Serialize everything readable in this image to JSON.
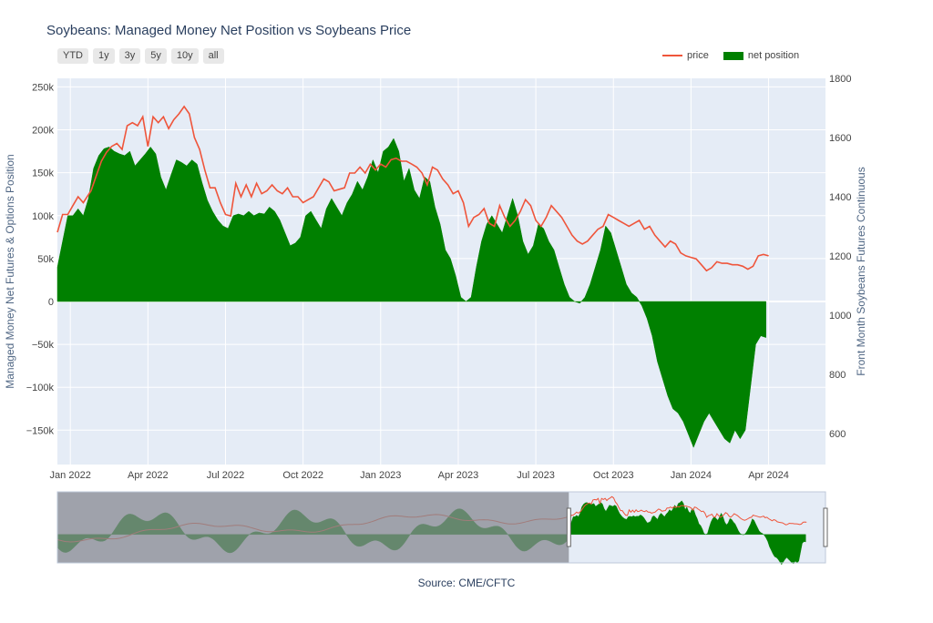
{
  "title": "Soybeans: Managed Money Net Position vs Soybeans Price",
  "range_buttons": [
    "YTD",
    "1y",
    "3y",
    "5y",
    "10y",
    "all"
  ],
  "source": "Source: CME/CFTC",
  "colors": {
    "price": "#ef553b",
    "net": "#008000",
    "plot_bg": "#e5ecf6",
    "grid": "#ffffff",
    "range_mask": "#878991"
  },
  "chart_data": {
    "type": "area",
    "legend": {
      "placement": "top-right",
      "entries": [
        "price",
        "net position"
      ]
    },
    "x_ticks": [
      {
        "label": "Jan 2022",
        "t": 0.0
      },
      {
        "label": "Apr 2022",
        "t": 3.0
      },
      {
        "label": "Jul 2022",
        "t": 6.0
      },
      {
        "label": "Oct 2022",
        "t": 9.0
      },
      {
        "label": "Jan 2023",
        "t": 12.0
      },
      {
        "label": "Apr 2023",
        "t": 15.0
      },
      {
        "label": "Jul 2023",
        "t": 18.0
      },
      {
        "label": "Oct 2023",
        "t": 21.0
      },
      {
        "label": "Jan 2024",
        "t": 24.0
      },
      {
        "label": "Apr 2024",
        "t": 27.0
      }
    ],
    "xlim": [
      -0.5,
      29.2
    ],
    "y_left": {
      "label": "Managed Money Net Futures & Options Position",
      "range": [
        -190000,
        260000
      ],
      "ticks": [
        {
          "v": 250000,
          "label": "250k"
        },
        {
          "v": 200000,
          "label": "200k"
        },
        {
          "v": 150000,
          "label": "150k"
        },
        {
          "v": 100000,
          "label": "100k"
        },
        {
          "v": 50000,
          "label": "50k"
        },
        {
          "v": 0,
          "label": "0"
        },
        {
          "v": -50000,
          "label": "−50k"
        },
        {
          "v": -100000,
          "label": "−100k"
        },
        {
          "v": -150000,
          "label": "−150k"
        }
      ]
    },
    "y_right": {
      "label": "Front Month Soybeans Futures Continuous",
      "range": [
        495,
        1800
      ],
      "ticks": [
        {
          "v": 1800,
          "label": "1800"
        },
        {
          "v": 1600,
          "label": "1600"
        },
        {
          "v": 1400,
          "label": "1400"
        },
        {
          "v": 1200,
          "label": "1200"
        },
        {
          "v": 1000,
          "label": "1000"
        },
        {
          "v": 800,
          "label": "800"
        },
        {
          "v": 600,
          "label": "600"
        }
      ]
    },
    "series": [
      {
        "name": "price",
        "axis": "right",
        "type": "line",
        "points": [
          [
            -0.5,
            1280
          ],
          [
            -0.3,
            1340
          ],
          [
            -0.1,
            1340
          ],
          [
            0.1,
            1370
          ],
          [
            0.3,
            1400
          ],
          [
            0.5,
            1380
          ],
          [
            0.8,
            1420
          ],
          [
            1.0,
            1470
          ],
          [
            1.2,
            1520
          ],
          [
            1.4,
            1550
          ],
          [
            1.6,
            1570
          ],
          [
            1.8,
            1580
          ],
          [
            2.0,
            1560
          ],
          [
            2.2,
            1640
          ],
          [
            2.4,
            1650
          ],
          [
            2.6,
            1640
          ],
          [
            2.8,
            1670
          ],
          [
            3.0,
            1570
          ],
          [
            3.2,
            1670
          ],
          [
            3.4,
            1650
          ],
          [
            3.6,
            1670
          ],
          [
            3.8,
            1630
          ],
          [
            4.0,
            1660
          ],
          [
            4.2,
            1680
          ],
          [
            4.4,
            1705
          ],
          [
            4.6,
            1680
          ],
          [
            4.8,
            1600
          ],
          [
            5.0,
            1560
          ],
          [
            5.2,
            1490
          ],
          [
            5.4,
            1430
          ],
          [
            5.6,
            1430
          ],
          [
            5.8,
            1380
          ],
          [
            6.0,
            1340
          ],
          [
            6.2,
            1335
          ],
          [
            6.4,
            1445
          ],
          [
            6.6,
            1400
          ],
          [
            6.8,
            1440
          ],
          [
            7.0,
            1400
          ],
          [
            7.2,
            1445
          ],
          [
            7.4,
            1410
          ],
          [
            7.6,
            1420
          ],
          [
            7.8,
            1440
          ],
          [
            8.0,
            1420
          ],
          [
            8.2,
            1410
          ],
          [
            8.4,
            1430
          ],
          [
            8.6,
            1400
          ],
          [
            8.8,
            1400
          ],
          [
            9.0,
            1380
          ],
          [
            9.2,
            1390
          ],
          [
            9.4,
            1400
          ],
          [
            9.6,
            1430
          ],
          [
            9.8,
            1460
          ],
          [
            10.0,
            1450
          ],
          [
            10.2,
            1420
          ],
          [
            10.4,
            1425
          ],
          [
            10.6,
            1430
          ],
          [
            10.8,
            1480
          ],
          [
            11.0,
            1480
          ],
          [
            11.2,
            1500
          ],
          [
            11.4,
            1480
          ],
          [
            11.6,
            1510
          ],
          [
            11.8,
            1490
          ],
          [
            12.0,
            1510
          ],
          [
            12.2,
            1500
          ],
          [
            12.4,
            1525
          ],
          [
            12.6,
            1530
          ],
          [
            12.8,
            1520
          ],
          [
            13.0,
            1520
          ],
          [
            13.2,
            1510
          ],
          [
            13.4,
            1500
          ],
          [
            13.6,
            1480
          ],
          [
            13.8,
            1440
          ],
          [
            14.0,
            1500
          ],
          [
            14.2,
            1490
          ],
          [
            14.4,
            1460
          ],
          [
            14.6,
            1440
          ],
          [
            14.8,
            1410
          ],
          [
            15.0,
            1420
          ],
          [
            15.2,
            1380
          ],
          [
            15.4,
            1300
          ],
          [
            15.6,
            1330
          ],
          [
            15.8,
            1340
          ],
          [
            16.0,
            1360
          ],
          [
            16.2,
            1310
          ],
          [
            16.4,
            1300
          ],
          [
            16.6,
            1370
          ],
          [
            16.8,
            1330
          ],
          [
            17.0,
            1300
          ],
          [
            17.2,
            1320
          ],
          [
            17.4,
            1350
          ],
          [
            17.6,
            1390
          ],
          [
            17.8,
            1370
          ],
          [
            18.0,
            1320
          ],
          [
            18.2,
            1300
          ],
          [
            18.4,
            1330
          ],
          [
            18.6,
            1370
          ],
          [
            18.8,
            1350
          ],
          [
            19.0,
            1330
          ],
          [
            19.2,
            1300
          ],
          [
            19.4,
            1270
          ],
          [
            19.6,
            1250
          ],
          [
            19.8,
            1240
          ],
          [
            20.0,
            1250
          ],
          [
            20.2,
            1270
          ],
          [
            20.4,
            1290
          ],
          [
            20.6,
            1300
          ],
          [
            20.8,
            1340
          ],
          [
            21.0,
            1330
          ],
          [
            21.2,
            1320
          ],
          [
            21.4,
            1310
          ],
          [
            21.6,
            1300
          ],
          [
            21.8,
            1310
          ],
          [
            22.0,
            1320
          ],
          [
            22.2,
            1290
          ],
          [
            22.4,
            1300
          ],
          [
            22.6,
            1270
          ],
          [
            22.8,
            1250
          ],
          [
            23.0,
            1230
          ],
          [
            23.2,
            1250
          ],
          [
            23.4,
            1240
          ],
          [
            23.6,
            1210
          ],
          [
            23.8,
            1200
          ],
          [
            24.0,
            1195
          ],
          [
            24.2,
            1190
          ],
          [
            24.4,
            1170
          ],
          [
            24.6,
            1150
          ],
          [
            24.8,
            1160
          ],
          [
            25.0,
            1180
          ],
          [
            25.2,
            1175
          ],
          [
            25.4,
            1175
          ],
          [
            25.6,
            1170
          ],
          [
            25.8,
            1170
          ],
          [
            26.0,
            1165
          ],
          [
            26.2,
            1155
          ],
          [
            26.4,
            1165
          ],
          [
            26.6,
            1200
          ],
          [
            26.8,
            1205
          ],
          [
            27.0,
            1200
          ]
        ]
      },
      {
        "name": "net position",
        "axis": "left",
        "type": "area",
        "points": [
          [
            -0.5,
            40000
          ],
          [
            -0.3,
            70000
          ],
          [
            -0.1,
            100000
          ],
          [
            0.1,
            100000
          ],
          [
            0.3,
            108000
          ],
          [
            0.5,
            100000
          ],
          [
            0.7,
            120000
          ],
          [
            0.9,
            155000
          ],
          [
            1.1,
            170000
          ],
          [
            1.3,
            178000
          ],
          [
            1.5,
            180000
          ],
          [
            1.7,
            175000
          ],
          [
            1.9,
            172000
          ],
          [
            2.1,
            170000
          ],
          [
            2.3,
            175000
          ],
          [
            2.5,
            158000
          ],
          [
            2.7,
            165000
          ],
          [
            2.9,
            172000
          ],
          [
            3.1,
            180000
          ],
          [
            3.3,
            172000
          ],
          [
            3.5,
            145000
          ],
          [
            3.7,
            130000
          ],
          [
            3.9,
            148000
          ],
          [
            4.1,
            165000
          ],
          [
            4.3,
            162000
          ],
          [
            4.5,
            158000
          ],
          [
            4.7,
            165000
          ],
          [
            4.9,
            160000
          ],
          [
            5.1,
            138000
          ],
          [
            5.3,
            118000
          ],
          [
            5.5,
            105000
          ],
          [
            5.7,
            95000
          ],
          [
            5.9,
            88000
          ],
          [
            6.1,
            85000
          ],
          [
            6.3,
            100000
          ],
          [
            6.5,
            102000
          ],
          [
            6.7,
            100000
          ],
          [
            6.9,
            105000
          ],
          [
            7.1,
            100000
          ],
          [
            7.3,
            103000
          ],
          [
            7.5,
            102000
          ],
          [
            7.7,
            110000
          ],
          [
            7.9,
            105000
          ],
          [
            8.1,
            95000
          ],
          [
            8.3,
            80000
          ],
          [
            8.5,
            65000
          ],
          [
            8.7,
            68000
          ],
          [
            8.9,
            75000
          ],
          [
            9.1,
            100000
          ],
          [
            9.3,
            105000
          ],
          [
            9.5,
            95000
          ],
          [
            9.7,
            85000
          ],
          [
            9.9,
            108000
          ],
          [
            10.1,
            120000
          ],
          [
            10.3,
            110000
          ],
          [
            10.5,
            100000
          ],
          [
            10.7,
            115000
          ],
          [
            10.9,
            125000
          ],
          [
            11.1,
            140000
          ],
          [
            11.3,
            130000
          ],
          [
            11.5,
            145000
          ],
          [
            11.7,
            165000
          ],
          [
            11.9,
            150000
          ],
          [
            12.1,
            175000
          ],
          [
            12.3,
            180000
          ],
          [
            12.5,
            190000
          ],
          [
            12.7,
            175000
          ],
          [
            12.9,
            140000
          ],
          [
            13.1,
            155000
          ],
          [
            13.3,
            130000
          ],
          [
            13.5,
            120000
          ],
          [
            13.7,
            145000
          ],
          [
            13.9,
            140000
          ],
          [
            14.1,
            110000
          ],
          [
            14.3,
            90000
          ],
          [
            14.5,
            60000
          ],
          [
            14.7,
            50000
          ],
          [
            14.9,
            30000
          ],
          [
            15.1,
            5000
          ],
          [
            15.3,
            0
          ],
          [
            15.5,
            5000
          ],
          [
            15.7,
            40000
          ],
          [
            15.9,
            70000
          ],
          [
            16.1,
            90000
          ],
          [
            16.3,
            100000
          ],
          [
            16.5,
            90000
          ],
          [
            16.7,
            80000
          ],
          [
            16.9,
            100000
          ],
          [
            17.1,
            120000
          ],
          [
            17.3,
            100000
          ],
          [
            17.5,
            70000
          ],
          [
            17.7,
            55000
          ],
          [
            17.9,
            65000
          ],
          [
            18.1,
            90000
          ],
          [
            18.3,
            85000
          ],
          [
            18.5,
            70000
          ],
          [
            18.7,
            60000
          ],
          [
            18.9,
            40000
          ],
          [
            19.1,
            20000
          ],
          [
            19.3,
            5000
          ],
          [
            19.5,
            0
          ],
          [
            19.7,
            -2000
          ],
          [
            19.9,
            5000
          ],
          [
            20.1,
            20000
          ],
          [
            20.3,
            40000
          ],
          [
            20.5,
            60000
          ],
          [
            20.7,
            88000
          ],
          [
            20.9,
            80000
          ],
          [
            21.1,
            60000
          ],
          [
            21.3,
            40000
          ],
          [
            21.5,
            20000
          ],
          [
            21.7,
            10000
          ],
          [
            21.9,
            5000
          ],
          [
            22.1,
            -5000
          ],
          [
            22.3,
            -20000
          ],
          [
            22.5,
            -40000
          ],
          [
            22.7,
            -70000
          ],
          [
            22.9,
            -90000
          ],
          [
            23.1,
            -110000
          ],
          [
            23.3,
            -125000
          ],
          [
            23.5,
            -130000
          ],
          [
            23.7,
            -140000
          ],
          [
            23.9,
            -155000
          ],
          [
            24.1,
            -170000
          ],
          [
            24.3,
            -155000
          ],
          [
            24.5,
            -140000
          ],
          [
            24.7,
            -130000
          ],
          [
            24.9,
            -140000
          ],
          [
            25.1,
            -150000
          ],
          [
            25.3,
            -160000
          ],
          [
            25.5,
            -165000
          ],
          [
            25.7,
            -150000
          ],
          [
            25.9,
            -160000
          ],
          [
            26.1,
            -150000
          ],
          [
            26.3,
            -100000
          ],
          [
            26.5,
            -50000
          ],
          [
            26.7,
            -40000
          ],
          [
            26.9,
            -42000
          ]
        ]
      }
    ]
  }
}
